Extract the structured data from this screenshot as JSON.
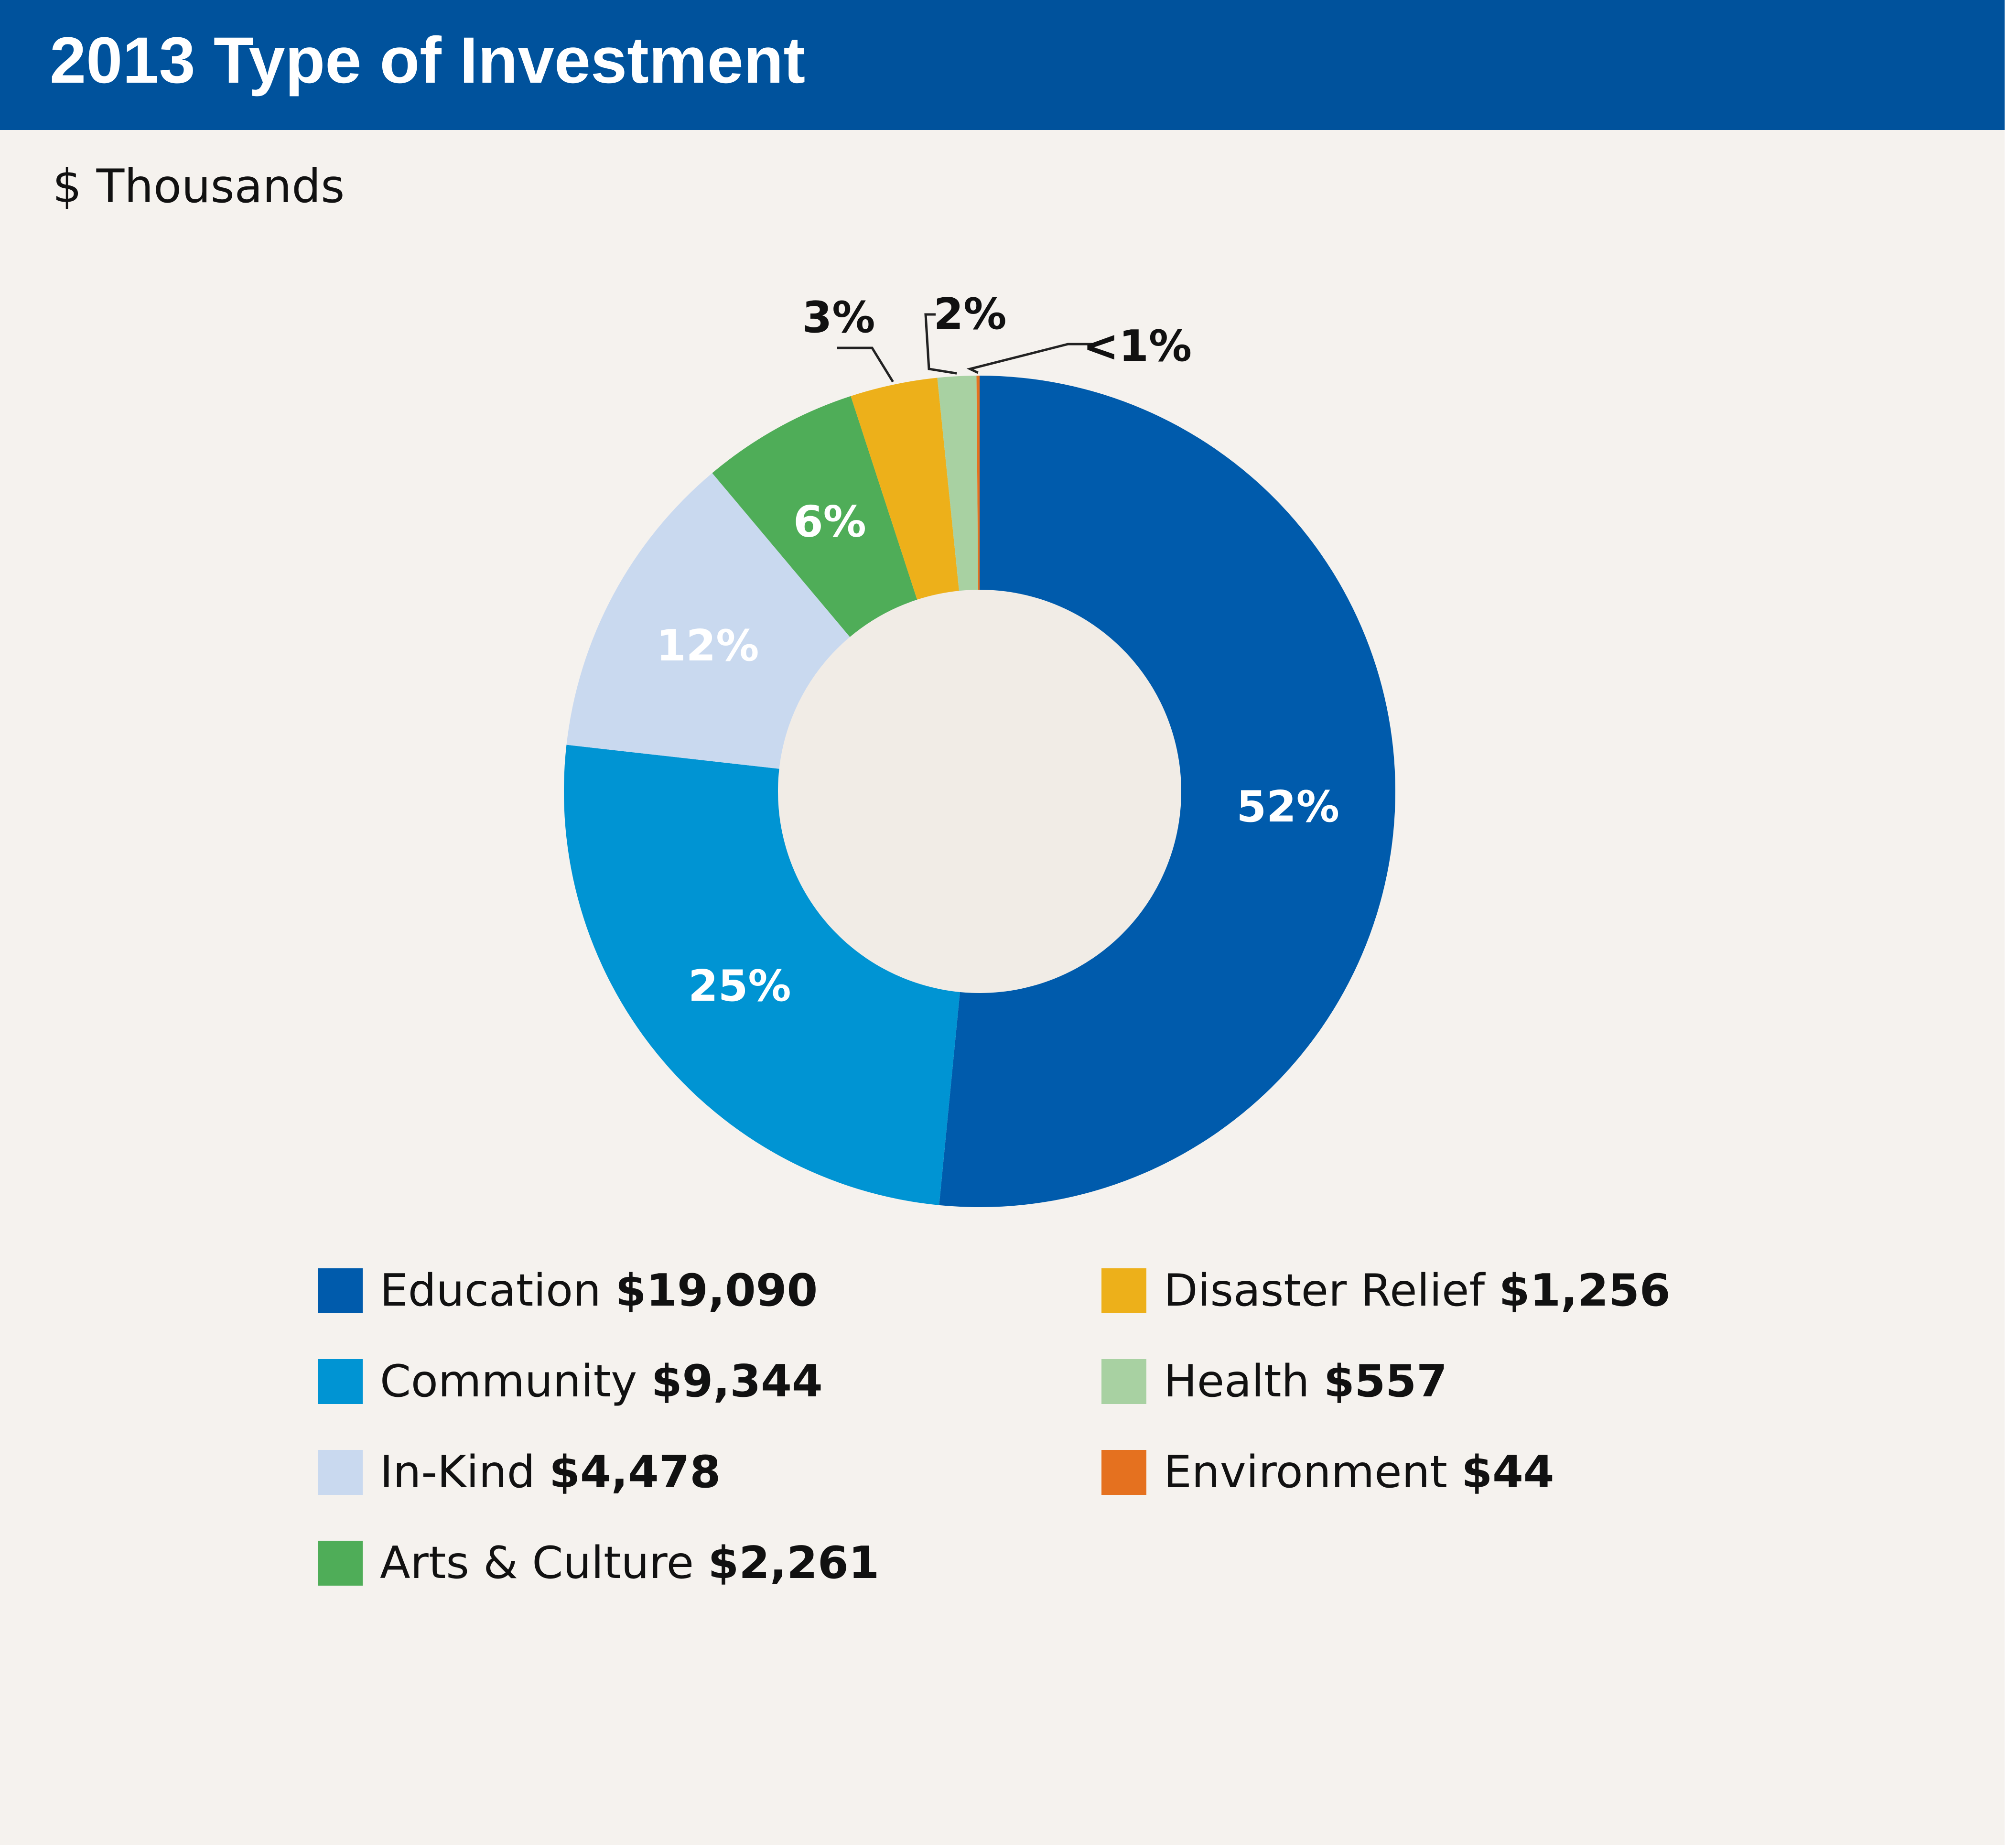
{
  "title": "2013 Type of Investment",
  "subtitle": "$ Thousands",
  "chart_data": {
    "type": "pie",
    "style": "donut",
    "title": "2013 Type of Investment",
    "subtitle": "$ Thousands",
    "units": "$ Thousands",
    "start_angle": "12 o'clock",
    "direction": "clockwise",
    "categories": [
      "Education",
      "Community",
      "In-Kind",
      "Arts & Culture",
      "Disaster Relief",
      "Health",
      "Environment"
    ],
    "values": [
      19090,
      9344,
      4478,
      2261,
      1256,
      557,
      44
    ],
    "value_labels": [
      "$19,090",
      "$9,344",
      "$4,478",
      "$2,261",
      "$1,256",
      "$557",
      "$44"
    ],
    "percent_labels": [
      "52%",
      "25%",
      "12%",
      "6%",
      "3%",
      "2%",
      "<1%"
    ],
    "colors": [
      "#005bac",
      "#0094d3",
      "#c9d9ef",
      "#4fad58",
      "#edb01a",
      "#a8d1a2",
      "#e5711f"
    ],
    "percent_label_colors": [
      "#ffffff",
      "#ffffff",
      "#ffffff",
      "#ffffff",
      "#111111",
      "#111111",
      "#111111"
    ],
    "legend": "bottom, two columns"
  }
}
